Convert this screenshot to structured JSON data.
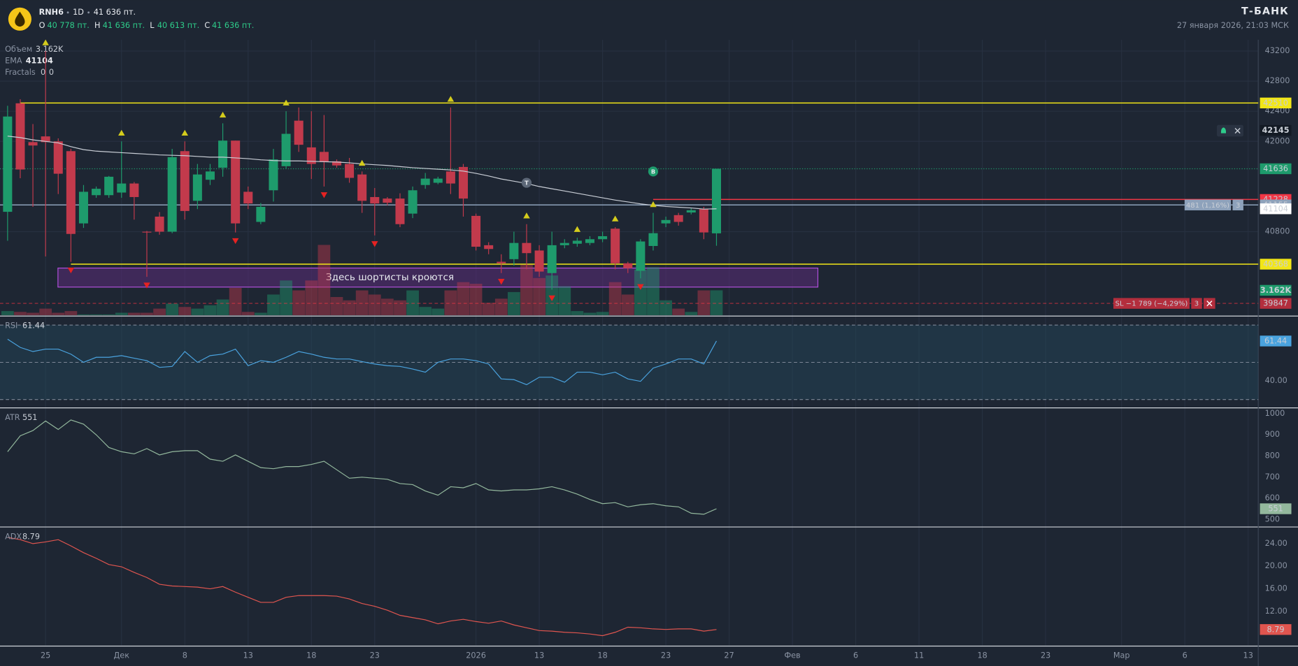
{
  "header": {
    "symbol": "RNH6",
    "interval": "1D",
    "price": "41 636 пт.",
    "ohlc": [
      {
        "label": "O",
        "value": "40 778 пт."
      },
      {
        "label": "H",
        "value": "41 636 пт."
      },
      {
        "label": "L",
        "value": "40 613 пт."
      },
      {
        "label": "C",
        "value": "41 636 пт."
      }
    ],
    "brand": "Т‑БАНК",
    "datetime": "27 января 2026, 21:03 МСК"
  },
  "chart_data": [
    {
      "type": "candlestick",
      "up_color": "#1e9b6c",
      "down_color": "#c23a4c",
      "xlim": [
        -0.6,
        98.8
      ],
      "xticks": [
        {
          "value": 3,
          "label": "25"
        },
        {
          "value": 9,
          "label": "Дек"
        },
        {
          "value": 14,
          "label": "8"
        },
        {
          "value": 19,
          "label": "13"
        },
        {
          "value": 24,
          "label": "18"
        },
        {
          "value": 29,
          "label": "23"
        },
        {
          "value": 37,
          "label": "2026"
        },
        {
          "value": 42,
          "label": "13"
        },
        {
          "value": 47,
          "label": "18"
        },
        {
          "value": 52,
          "label": "23"
        },
        {
          "value": 57,
          "label": "27"
        },
        {
          "value": 62,
          "label": "Фев"
        },
        {
          "value": 67,
          "label": "6"
        },
        {
          "value": 72,
          "label": "11"
        },
        {
          "value": 77,
          "label": "18"
        },
        {
          "value": 82,
          "label": "23"
        },
        {
          "value": 88,
          "label": "Мар"
        },
        {
          "value": 93,
          "label": "6"
        },
        {
          "value": 98,
          "label": "13"
        }
      ],
      "ylim": [
        39690,
        43350
      ],
      "yticks": [
        40800,
        42000,
        42400,
        42800,
        43200
      ],
      "grid": true,
      "x": [
        0,
        1,
        2,
        3,
        4,
        5,
        6,
        7,
        8,
        9,
        10,
        11,
        12,
        13,
        14,
        15,
        16,
        17,
        18,
        19,
        20,
        21,
        22,
        23,
        24,
        25,
        26,
        27,
        28,
        29,
        30,
        31,
        32,
        33,
        34,
        35,
        36,
        37,
        38,
        39,
        40,
        41,
        42,
        43,
        44,
        45,
        46,
        47,
        48,
        49,
        50,
        51,
        52,
        53,
        54,
        55,
        56
      ],
      "open": [
        41064,
        42506,
        41990,
        42066,
        42000,
        41870,
        40910,
        41285,
        41285,
        41320,
        41440,
        40800,
        41000,
        40800,
        41870,
        41210,
        41490,
        41650,
        42010,
        41330,
        40930,
        41350,
        41670,
        42275,
        41920,
        41860,
        41735,
        41700,
        41560,
        41260,
        41240,
        41240,
        41040,
        41420,
        41450,
        41600,
        41660,
        41010,
        40620,
        40400,
        40435,
        40650,
        40550,
        40250,
        40620,
        40640,
        40650,
        40700,
        40840,
        40380,
        40280,
        40610,
        40910,
        41020,
        41055,
        41100,
        40778
      ],
      "high": [
        42473,
        42560,
        42230,
        43200,
        42040,
        41900,
        41420,
        41400,
        41540,
        42000,
        41460,
        40810,
        41060,
        41900,
        42000,
        41700,
        41700,
        42240,
        42010,
        41400,
        41180,
        41900,
        42400,
        42450,
        42400,
        42350,
        41760,
        41780,
        41600,
        41380,
        41260,
        41310,
        41400,
        41580,
        41530,
        42450,
        41700,
        41040,
        40660,
        40500,
        40800,
        40900,
        40620,
        40800,
        40700,
        40720,
        40740,
        40800,
        40860,
        40400,
        40700,
        41050,
        41000,
        41050,
        41110,
        41130,
        41636
      ],
      "low": [
        40679,
        41510,
        41130,
        40470,
        41300,
        40400,
        40850,
        41250,
        41250,
        41250,
        40960,
        40200,
        40760,
        40780,
        40960,
        41100,
        41420,
        41530,
        40790,
        41100,
        40900,
        41200,
        41640,
        41860,
        41500,
        41400,
        41650,
        41450,
        41050,
        40750,
        41150,
        40860,
        40980,
        41370,
        41430,
        41300,
        41000,
        40550,
        40500,
        40250,
        40350,
        40300,
        40200,
        40030,
        40580,
        40600,
        40620,
        40660,
        40300,
        40250,
        40180,
        40550,
        40860,
        40880,
        41030,
        40700,
        40613
      ],
      "close": [
        42330,
        41626,
        41945,
        41990,
        41570,
        40770,
        41330,
        41370,
        41530,
        41440,
        41260,
        40790,
        40800,
        41790,
        41075,
        41560,
        41600,
        42010,
        40910,
        41175,
        41130,
        41760,
        42100,
        41955,
        41700,
        41725,
        41680,
        41515,
        41210,
        41175,
        41185,
        40900,
        41350,
        41505,
        41505,
        41440,
        41240,
        40600,
        40570,
        40380,
        40650,
        40515,
        40270,
        40620,
        40650,
        40680,
        40700,
        40740,
        40380,
        40315,
        40670,
        40780,
        40955,
        40930,
        41085,
        40790,
        41636
      ],
      "volume": {
        "name": "Объем",
        "label": "3.162K",
        "values": [
          525,
          420,
          315,
          840,
          315,
          525,
          105,
          105,
          105,
          315,
          315,
          315,
          840,
          1470,
          1050,
          840,
          1260,
          1995,
          3465,
          420,
          315,
          2625,
          4410,
          3150,
          4410,
          8925,
          2310,
          1890,
          3150,
          2625,
          2100,
          1890,
          3150,
          1050,
          840,
          3150,
          4200,
          3990,
          1575,
          2100,
          2940,
          6510,
          4725,
          5040,
          3675,
          525,
          315,
          420,
          4200,
          2625,
          5775,
          6090,
          1890,
          840,
          420,
          3150,
          3162
        ]
      },
      "ema": {
        "name": "EMA",
        "color": "#c9ced6",
        "values": [
          42070,
          42050,
          42020,
          42000,
          41980,
          41930,
          41890,
          41870,
          41860,
          41850,
          41840,
          41830,
          41820,
          41815,
          41810,
          41800,
          41790,
          41790,
          41780,
          41770,
          41755,
          41745,
          41740,
          41740,
          41735,
          41730,
          41725,
          41715,
          41700,
          41690,
          41680,
          41665,
          41650,
          41640,
          41630,
          41620,
          41605,
          41575,
          41540,
          41500,
          41470,
          41440,
          41400,
          41370,
          41340,
          41310,
          41280,
          41250,
          41220,
          41195,
          41170,
          41150,
          41135,
          41125,
          41115,
          41100,
          41104
        ]
      },
      "fractals": {
        "name": "Fractals",
        "legend_values": [
          0,
          0
        ],
        "up_color": "#d4cc1c",
        "down_color": "#e52222",
        "up": [
          3,
          9,
          14,
          17,
          22,
          28,
          35,
          41,
          45,
          48,
          51
        ],
        "down": [
          5,
          11,
          18,
          25,
          29,
          39,
          43,
          50
        ]
      },
      "levels": [
        {
          "value": 42510,
          "color": "#f2e617",
          "start": 1
        },
        {
          "value": 40368,
          "color": "#f2e617",
          "start": 5
        },
        {
          "value": 41228,
          "color": "#f23645",
          "start": 51
        },
        {
          "value": 41155,
          "color": "#8ea2bb",
          "label": "481 (1,16%)",
          "count": 3
        },
        {
          "value": 39847,
          "color": "#f23645",
          "dashed": true,
          "label": "SL −1 789 (−4,29%)",
          "count": 3
        }
      ],
      "alert_price": 42145,
      "trade_markers": [
        {
          "x": 41,
          "label": "T",
          "color": "#5d6878"
        },
        {
          "x": 51,
          "label": "B",
          "color": "#1e9b6c"
        }
      ],
      "annotation": "Здесь шортисты кроются"
    },
    {
      "type": "line",
      "title": "RSI",
      "color": "#4aa3df",
      "ylim": [
        26,
        74.4
      ],
      "yticks": [
        {
          "value": 40,
          "label": "40.00"
        }
      ],
      "levels": [
        30,
        50,
        70
      ],
      "value_label": "61.44",
      "values": [
        62.4,
        58,
        55.8,
        57.1,
        57.1,
        54.4,
        50,
        52.7,
        52.7,
        53.6,
        52.2,
        50.9,
        47.3,
        47.8,
        55.8,
        50,
        53.6,
        54.4,
        57.1,
        48.2,
        50.9,
        50,
        52.7,
        55.8,
        54.4,
        52.7,
        51.8,
        51.8,
        50.4,
        49.1,
        48.2,
        47.8,
        46.4,
        44.7,
        50,
        51.8,
        51.8,
        50.9,
        49.1,
        41.1,
        40.7,
        38,
        42,
        42,
        39.3,
        44.7,
        44.7,
        43.3,
        44.7,
        41.1,
        39.8,
        46.9,
        49.1,
        51.8,
        51.8,
        49.1,
        61.44
      ]
    },
    {
      "type": "line",
      "title": "ATR",
      "color": "#93b89d",
      "ylim": [
        469,
        1023
      ],
      "yticks": [
        500,
        600,
        700,
        800,
        900,
        1000
      ],
      "values": [
        820,
        895,
        920,
        965,
        925,
        970,
        950,
        900,
        840,
        820,
        810,
        835,
        805,
        820,
        825,
        825,
        785,
        775,
        805,
        775,
        745,
        740,
        750,
        750,
        760,
        775,
        735,
        695,
        700,
        695,
        690,
        670,
        665,
        635,
        615,
        655,
        650,
        670,
        640,
        635,
        640,
        640,
        645,
        655,
        640,
        620,
        595,
        575,
        580,
        560,
        570,
        575,
        565,
        560,
        530,
        525,
        551
      ]
    },
    {
      "type": "line",
      "title": "ADX",
      "color": "#e0554f",
      "ylim": [
        6,
        26.8
      ],
      "yticks": [
        {
          "value": 12,
          "label": "12.00"
        },
        {
          "value": 16,
          "label": "16.00"
        },
        {
          "value": 20,
          "label": "20.00"
        },
        {
          "value": 24,
          "label": "24.00"
        }
      ],
      "values": [
        25.1,
        24.7,
        24,
        24.3,
        24.7,
        23.6,
        22.4,
        21.4,
        20.3,
        19.9,
        18.9,
        18,
        16.8,
        16.5,
        16.4,
        16.3,
        16,
        16.4,
        15.4,
        14.5,
        13.6,
        13.6,
        14.5,
        14.8,
        14.8,
        14.8,
        14.7,
        14.2,
        13.4,
        12.9,
        12.2,
        11.3,
        10.9,
        10.5,
        9.8,
        10.3,
        10.6,
        10.2,
        9.9,
        10.3,
        9.6,
        9.1,
        8.6,
        8.5,
        8.3,
        8.2,
        8,
        7.7,
        8.3,
        9.2,
        9.1,
        8.9,
        8.8,
        8.9,
        8.9,
        8.5,
        8.79
      ]
    }
  ]
}
